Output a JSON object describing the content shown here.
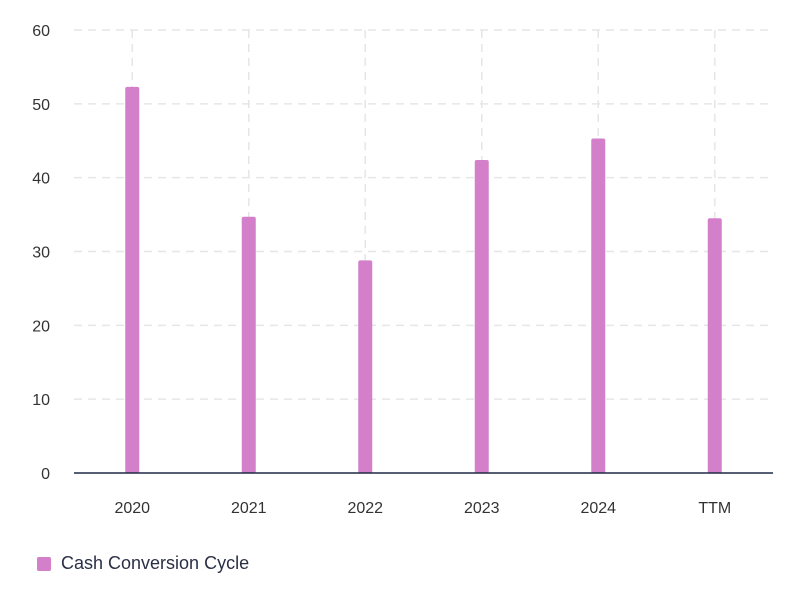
{
  "chart_data": {
    "type": "bar",
    "categories": [
      "2020",
      "2021",
      "2022",
      "2023",
      "2024",
      "TTM"
    ],
    "series": [
      {
        "name": "Cash Conversion Cycle",
        "values": [
          52.3,
          34.7,
          28.8,
          42.4,
          45.3,
          34.5
        ],
        "color": "#d47fc9"
      }
    ],
    "ylim": [
      0,
      60
    ],
    "yticks": [
      "0",
      "10",
      "20",
      "30",
      "40",
      "50",
      "60"
    ],
    "grid": true,
    "legend_position": "bottom-left"
  }
}
